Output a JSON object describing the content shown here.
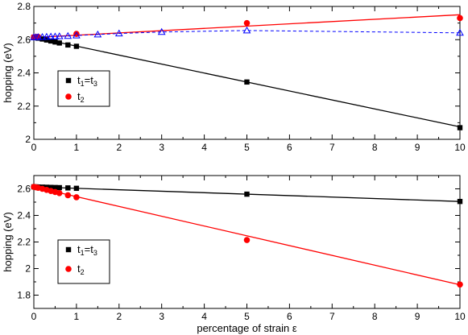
{
  "chart_data": [
    {
      "type": "scatter",
      "xlabel": "",
      "ylabel": "hopping  (eV)",
      "xlim": [
        0,
        10
      ],
      "ylim": [
        2.0,
        2.8
      ],
      "xticks": [
        0,
        1,
        2,
        3,
        4,
        5,
        6,
        7,
        8,
        9,
        10
      ],
      "yticks": [
        2.0,
        2.2,
        2.4,
        2.6,
        2.8
      ],
      "grid": false,
      "legend_position": "lower-left",
      "series": [
        {
          "name": "t1=t3",
          "legend_main": "t",
          "legend_sub1": "1",
          "legend_eq": "=t",
          "legend_sub2": "3",
          "marker": "square",
          "color": "#000000",
          "x": [
            0,
            0.05,
            0.1,
            0.2,
            0.3,
            0.4,
            0.5,
            0.6,
            0.8,
            1,
            5,
            10
          ],
          "y": [
            2.614,
            2.612,
            2.609,
            2.604,
            2.598,
            2.592,
            2.586,
            2.58,
            2.568,
            2.56,
            2.345,
            2.07
          ],
          "fit_line": {
            "x": [
              0,
              10
            ],
            "y": [
              2.615,
              2.075
            ]
          }
        },
        {
          "name": "t2",
          "legend_main": "t",
          "legend_sub1": "2",
          "marker": "circle",
          "color": "#ff0000",
          "x": [
            0,
            0.05,
            0.1,
            1,
            5,
            10
          ],
          "y": [
            2.615,
            2.616,
            2.617,
            2.635,
            2.7,
            2.73
          ],
          "fit_line": {
            "x": [
              0,
              10
            ],
            "y": [
              2.613,
              2.75
            ]
          }
        },
        {
          "name": "",
          "marker": "triangle-open",
          "color": "#0000ff",
          "line_style": "dashed",
          "x": [
            0,
            0.05,
            0.1,
            0.2,
            0.3,
            0.4,
            0.5,
            0.6,
            0.8,
            1,
            1.5,
            2,
            3,
            5,
            10
          ],
          "y": [
            2.614,
            2.614,
            2.615,
            2.616,
            2.617,
            2.618,
            2.619,
            2.62,
            2.622,
            2.625,
            2.631,
            2.637,
            2.646,
            2.655,
            2.641
          ]
        }
      ]
    },
    {
      "type": "scatter",
      "xlabel": "percentage of strain ε",
      "ylabel": "hopping  (eV)",
      "xlim": [
        0,
        10
      ],
      "ylim": [
        1.7,
        2.7
      ],
      "xticks": [
        0,
        1,
        2,
        3,
        4,
        5,
        6,
        7,
        8,
        9,
        10
      ],
      "yticks": [
        1.8,
        2.0,
        2.2,
        2.4,
        2.6
      ],
      "grid": false,
      "legend_position": "lower-left",
      "series": [
        {
          "name": "t1=t3",
          "legend_main": "t",
          "legend_sub1": "1",
          "legend_eq": "=t",
          "legend_sub2": "3",
          "marker": "square",
          "color": "#000000",
          "x": [
            0,
            0.05,
            0.1,
            0.2,
            0.3,
            0.4,
            0.5,
            0.6,
            0.8,
            1,
            5,
            10
          ],
          "y": [
            2.615,
            2.615,
            2.614,
            2.613,
            2.612,
            2.611,
            2.61,
            2.609,
            2.607,
            2.604,
            2.56,
            2.505
          ],
          "fit_line": {
            "x": [
              0,
              10
            ],
            "y": [
              2.615,
              2.505
            ]
          }
        },
        {
          "name": "t2",
          "legend_main": "t",
          "legend_sub1": "2",
          "marker": "circle",
          "color": "#ff0000",
          "x": [
            0,
            0.05,
            0.1,
            0.2,
            0.3,
            0.4,
            0.5,
            0.6,
            0.8,
            1,
            5,
            10
          ],
          "y": [
            2.615,
            2.612,
            2.608,
            2.6,
            2.592,
            2.584,
            2.576,
            2.568,
            2.552,
            2.537,
            2.215,
            1.88
          ],
          "fit_line": {
            "x": [
              0,
              10
            ],
            "y": [
              2.615,
              1.878
            ]
          }
        }
      ]
    }
  ]
}
